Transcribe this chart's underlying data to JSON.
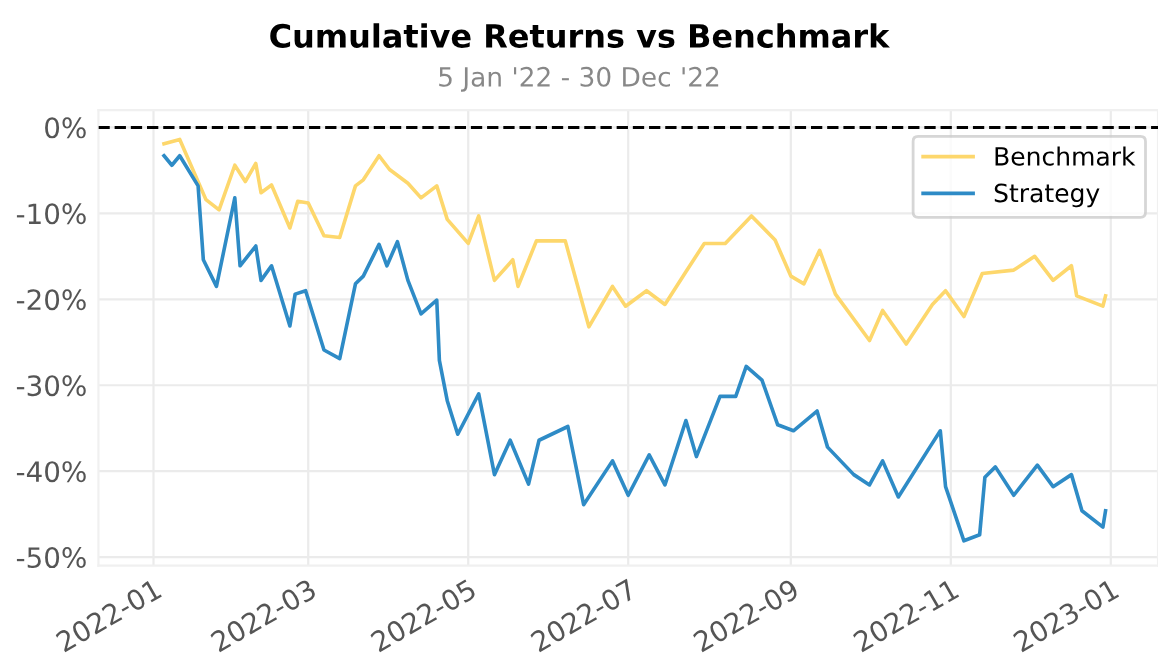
{
  "chart_data": {
    "type": "line",
    "title": "Cumulative Returns vs Benchmark",
    "subtitle": "5 Jan '22 - 30 Dec '22",
    "xlim": [
      "2021-12-11",
      "2023-01-19"
    ],
    "xticks": [
      {
        "value": "2022-01",
        "label": "2022-01"
      },
      {
        "value": "2022-03",
        "label": "2022-03"
      },
      {
        "value": "2022-05",
        "label": "2022-05"
      },
      {
        "value": "2022-07",
        "label": "2022-07"
      },
      {
        "value": "2022-09",
        "label": "2022-09"
      },
      {
        "value": "2022-11",
        "label": "2022-11"
      },
      {
        "value": "2023-01",
        "label": "2023-01"
      }
    ],
    "ylim": [
      -51,
      2
    ],
    "yticks": [
      {
        "value": -50,
        "label": "-50%"
      },
      {
        "value": -40,
        "label": "-40%"
      },
      {
        "value": -30,
        "label": "-30%"
      },
      {
        "value": -20,
        "label": "-20%"
      },
      {
        "value": -10,
        "label": "-10%"
      },
      {
        "value": 0,
        "label": "0%"
      }
    ],
    "grid": true,
    "legend": "top right",
    "line_style": "solid",
    "marker": "none",
    "ref_lines": [
      {
        "axis": "y",
        "value": 0,
        "color": "#000000",
        "line_style": "dashed"
      }
    ],
    "series": [
      {
        "name": "Benchmark",
        "color": "#fdd76c",
        "x": [
          "2022-01-05",
          "2022-01-11",
          "2022-01-21",
          "2022-01-26",
          "2022-02-01",
          "2022-02-05",
          "2022-02-09",
          "2022-02-11",
          "2022-02-15",
          "2022-02-22",
          "2022-02-25",
          "2022-03-01",
          "2022-03-07",
          "2022-03-13",
          "2022-03-19",
          "2022-03-22",
          "2022-03-28",
          "2022-04-01",
          "2022-04-08",
          "2022-04-13",
          "2022-04-19",
          "2022-04-23",
          "2022-05-01",
          "2022-05-05",
          "2022-05-11",
          "2022-05-18",
          "2022-05-20",
          "2022-05-27",
          "2022-06-07",
          "2022-06-16",
          "2022-06-25",
          "2022-06-30",
          "2022-07-08",
          "2022-07-15",
          "2022-07-23",
          "2022-07-30",
          "2022-08-07",
          "2022-08-17",
          "2022-08-26",
          "2022-09-01",
          "2022-09-06",
          "2022-09-12",
          "2022-09-18",
          "2022-10-01",
          "2022-10-06",
          "2022-10-15",
          "2022-10-25",
          "2022-10-30",
          "2022-11-06",
          "2022-11-13",
          "2022-11-25",
          "2022-12-03",
          "2022-12-10",
          "2022-12-17",
          "2022-12-19",
          "2022-12-29",
          "2022-12-30"
        ],
        "values": [
          -1.9,
          -1.4,
          -8.4,
          -9.6,
          -4.4,
          -6.3,
          -4.2,
          -7.6,
          -6.7,
          -11.7,
          -8.6,
          -8.8,
          -12.6,
          -12.8,
          -6.8,
          -6.1,
          -3.3,
          -4.9,
          -6.5,
          -8.2,
          -6.8,
          -10.7,
          -13.5,
          -10.3,
          -17.8,
          -15.4,
          -18.5,
          -13.2,
          -13.2,
          -23.2,
          -18.5,
          -20.8,
          -19,
          -20.6,
          -16.8,
          -13.5,
          -13.5,
          -10.3,
          -13.1,
          -17.3,
          -18.2,
          -14.3,
          -19.4,
          -24.8,
          -21.3,
          -25.2,
          -20.6,
          -19,
          -22,
          -17,
          -16.6,
          -15,
          -17.8,
          -16.1,
          -19.6,
          -20.8,
          -19.6
        ]
      },
      {
        "name": "Strategy",
        "color": "#2e8bc6",
        "x": [
          "2022-01-05",
          "2022-01-08",
          "2022-01-11",
          "2022-01-18",
          "2022-01-20",
          "2022-01-25",
          "2022-02-01",
          "2022-02-03",
          "2022-02-09",
          "2022-02-11",
          "2022-02-15",
          "2022-02-22",
          "2022-02-24",
          "2022-02-28",
          "2022-03-07",
          "2022-03-13",
          "2022-03-19",
          "2022-03-22",
          "2022-03-28",
          "2022-03-31",
          "2022-04-04",
          "2022-04-08",
          "2022-04-13",
          "2022-04-19",
          "2022-04-20",
          "2022-04-23",
          "2022-04-27",
          "2022-05-05",
          "2022-05-11",
          "2022-05-17",
          "2022-05-24",
          "2022-05-28",
          "2022-06-08",
          "2022-06-14",
          "2022-06-25",
          "2022-07-01",
          "2022-07-09",
          "2022-07-15",
          "2022-07-23",
          "2022-07-27",
          "2022-08-05",
          "2022-08-11",
          "2022-08-15",
          "2022-08-21",
          "2022-08-27",
          "2022-09-02",
          "2022-09-11",
          "2022-09-15",
          "2022-09-25",
          "2022-10-01",
          "2022-10-06",
          "2022-10-12",
          "2022-10-24",
          "2022-10-28",
          "2022-10-30",
          "2022-11-06",
          "2022-11-12",
          "2022-11-14",
          "2022-11-18",
          "2022-11-25",
          "2022-12-04",
          "2022-12-10",
          "2022-12-17",
          "2022-12-21",
          "2022-12-29",
          "2022-12-30"
        ],
        "values": [
          -3.3,
          -4.4,
          -3.3,
          -6.8,
          -15.4,
          -18.5,
          -8.2,
          -16.1,
          -13.8,
          -17.8,
          -16.1,
          -23.1,
          -19.4,
          -19,
          -25.9,
          -26.9,
          -18.2,
          -17.3,
          -13.6,
          -16.1,
          -13.3,
          -17.8,
          -21.7,
          -20.1,
          -27.1,
          -31.8,
          -35.7,
          -31,
          -40.4,
          -36.4,
          -41.5,
          -36.4,
          -34.8,
          -43.9,
          -38.8,
          -42.8,
          -38.1,
          -41.6,
          -34.1,
          -38.3,
          -31.3,
          -31.3,
          -27.8,
          -29.4,
          -34.6,
          -35.3,
          -33,
          -37.2,
          -40.4,
          -41.6,
          -38.8,
          -43,
          -37.2,
          -35.3,
          -41.8,
          -48.1,
          -47.4,
          -40.7,
          -39.5,
          -42.8,
          -39.3,
          -41.8,
          -40.4,
          -44.6,
          -46.5,
          -44.6
        ]
      }
    ]
  }
}
